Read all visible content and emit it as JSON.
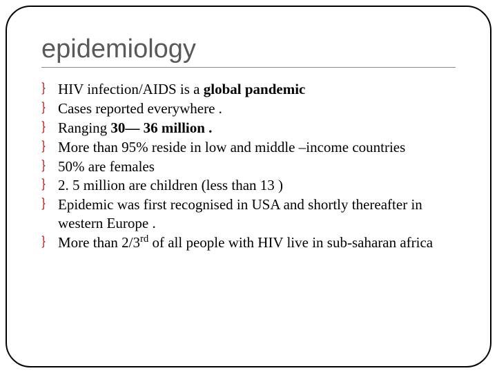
{
  "title": "epidemiology",
  "title_color": "#595959",
  "title_fontsize": 38,
  "body_fontsize": 21,
  "bullet_color": "#c00000",
  "bullet_glyph": "｝",
  "border_color": "#000000",
  "border_radius": 36,
  "background_color": "#ffffff",
  "bullets": [
    {
      "pre": "HIV infection/AIDS is a ",
      "bold": "global pandemic",
      "post": ""
    },
    {
      "pre": "Cases reported everywhere .",
      "bold": "",
      "post": ""
    },
    {
      "pre": "Ranging ",
      "bold": "30— 36 million .",
      "post": ""
    },
    {
      "pre": "More than 95% reside in low and middle –income countries",
      "bold": "",
      "post": ""
    },
    {
      "pre": "50% are females",
      "bold": "",
      "post": ""
    },
    {
      "pre": "2. 5 million are children (less than 13 )",
      "bold": "",
      "post": ""
    },
    {
      "pre": "Epidemic was first recognised in USA and shortly thereafter in western Europe .",
      "bold": "",
      "post": ""
    },
    {
      "pre": "More than 2/3",
      "sup": "rd",
      "post2": " of all people with HIV live in sub-saharan africa"
    }
  ]
}
